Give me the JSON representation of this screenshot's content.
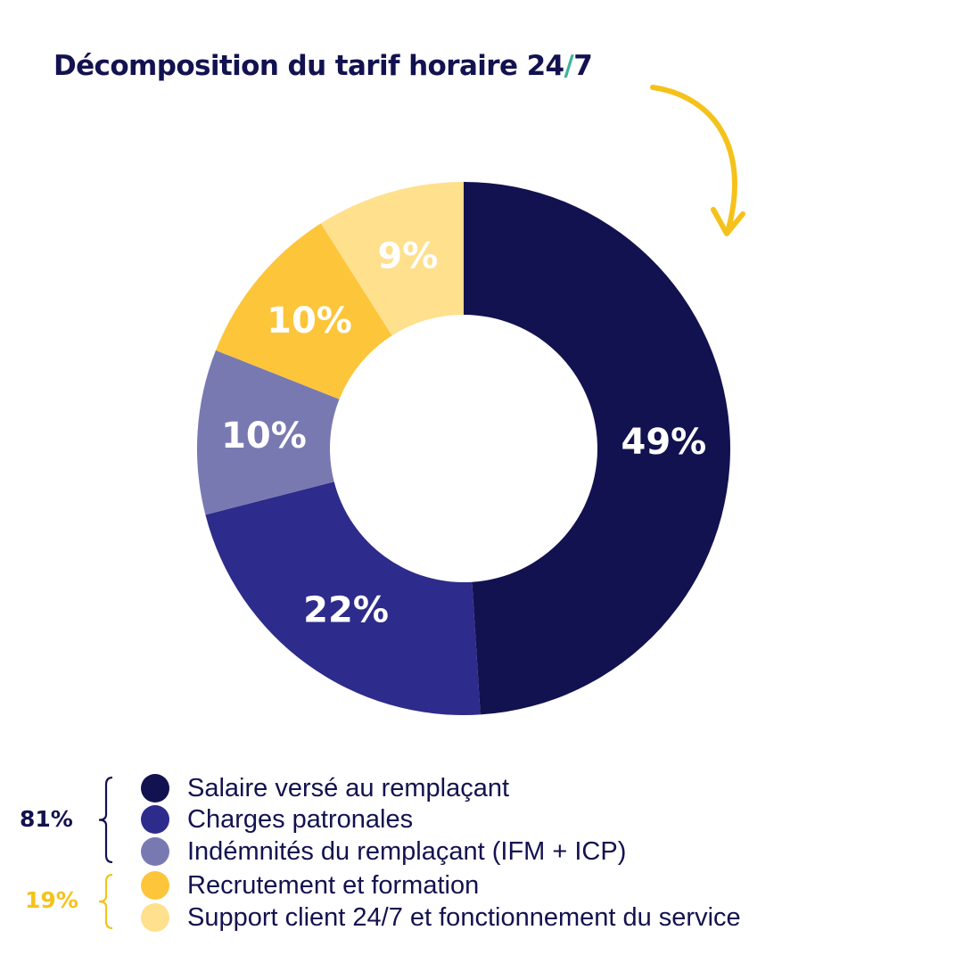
{
  "title": {
    "text": "Décomposition du tarif horaire 24",
    "slash": "/",
    "suffix": "7"
  },
  "colors": {
    "navy": "#131250",
    "indigo": "#2d2b8b",
    "lavender": "#7979b2",
    "gold": "#fdc53a",
    "light_gold": "#fee08d",
    "teal": "#3fb39a",
    "arrow": "#f5c21b"
  },
  "chart_data": {
    "type": "pie",
    "donut": true,
    "slices": [
      {
        "label": "Salaire versé au remplaçant",
        "value": 49,
        "display": "49%",
        "color": "#131250"
      },
      {
        "label": "Charges patronales",
        "value": 22,
        "display": "22%",
        "color": "#2d2b8b"
      },
      {
        "label": "Indémnités du remplaçant (IFM + ICP)",
        "value": 10,
        "display": "10%",
        "color": "#7979b2"
      },
      {
        "label": "Recrutement et formation",
        "value": 10,
        "display": "10%",
        "color": "#fdc53a"
      },
      {
        "label": "Support client 24/7 et fonctionnement du service",
        "value": 9,
        "display": "9%",
        "color": "#fee08d"
      }
    ],
    "legend_position": "bottom-left",
    "groups": [
      {
        "label": "81%",
        "color": "#131250",
        "members": [
          0,
          1,
          2
        ]
      },
      {
        "label": "19%",
        "color": "#f5c21b",
        "members": [
          3,
          4
        ]
      }
    ]
  }
}
